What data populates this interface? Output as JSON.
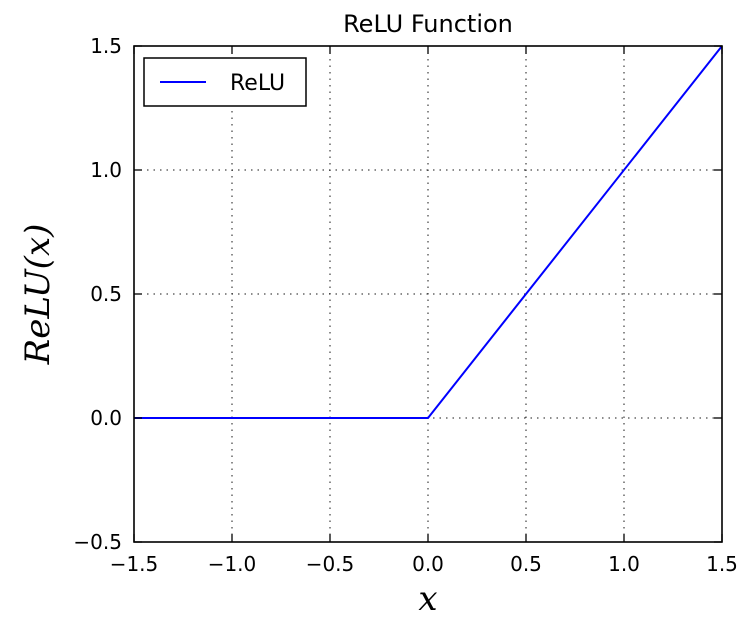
{
  "chart_data": {
    "type": "line",
    "title": "ReLU Function",
    "xlabel": "x",
    "ylabel": "ReLU(x)",
    "xlim": [
      -1.5,
      1.5
    ],
    "ylim": [
      -0.5,
      1.5
    ],
    "xticks": [
      -1.5,
      -1.0,
      -0.5,
      0.0,
      0.5,
      1.0,
      1.5
    ],
    "yticks": [
      -0.5,
      0.0,
      0.5,
      1.0,
      1.5
    ],
    "xtick_labels": [
      "−1.5",
      "−1.0",
      "−0.5",
      "0.0",
      "0.5",
      "1.0",
      "1.5"
    ],
    "ytick_labels": [
      "−0.5",
      "0.0",
      "0.5",
      "1.0",
      "1.5"
    ],
    "grid": true,
    "legend_position": "top-left",
    "series": [
      {
        "name": "ReLU",
        "color": "#0000ff",
        "x": [
          -1.5,
          0.0,
          1.5
        ],
        "y": [
          0.0,
          0.0,
          1.5
        ]
      }
    ]
  }
}
